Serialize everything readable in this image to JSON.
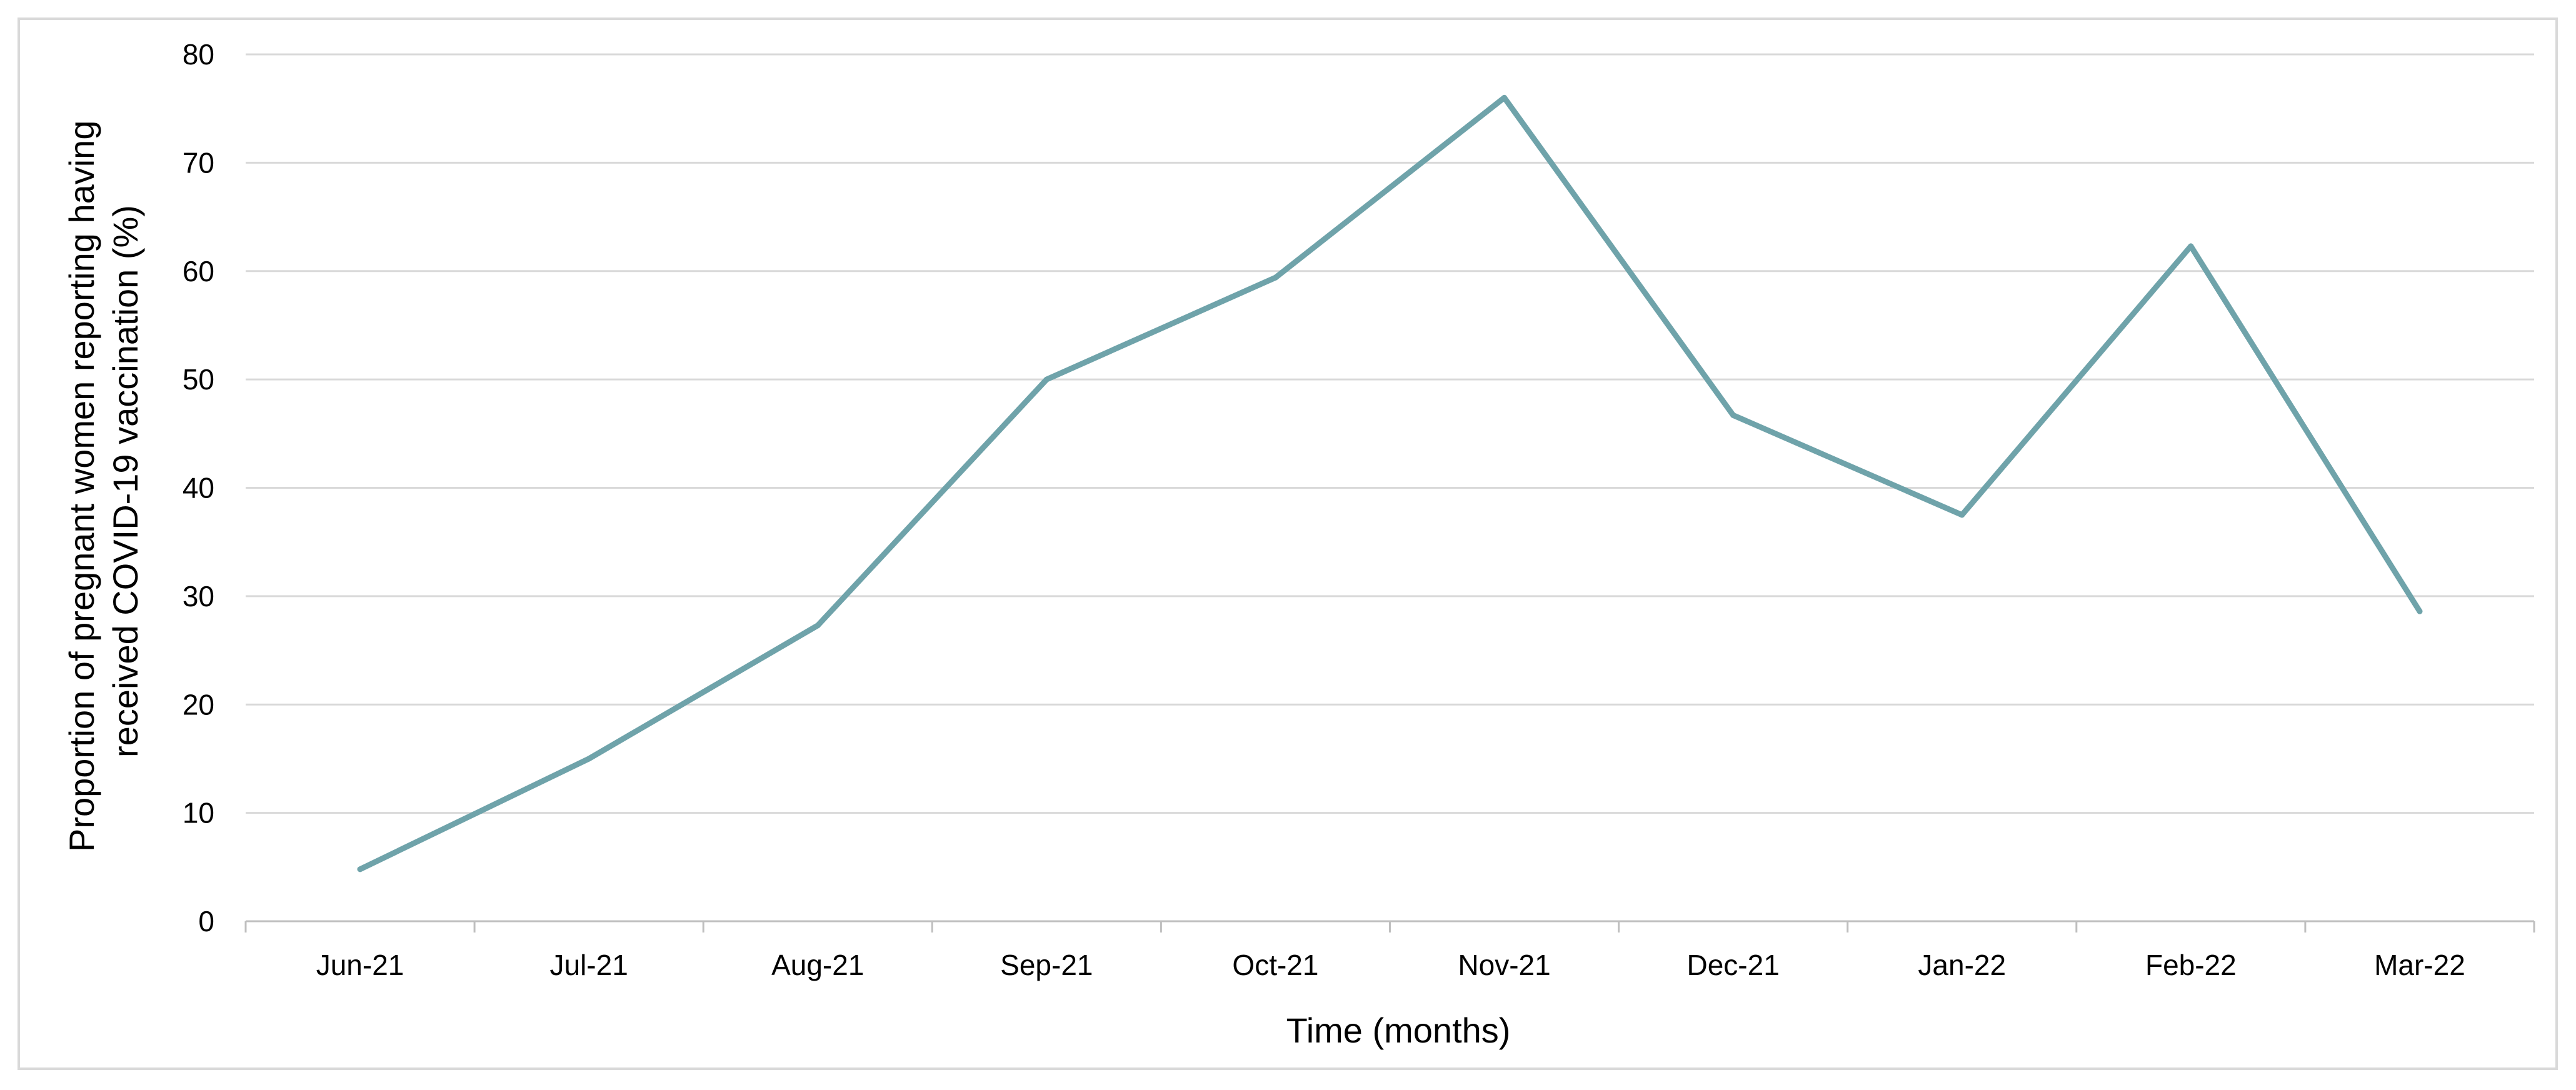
{
  "chart_data": {
    "type": "line",
    "categories": [
      "Jun-21",
      "Jul-21",
      "Aug-21",
      "Sep-21",
      "Oct-21",
      "Nov-21",
      "Dec-21",
      "Jan-22",
      "Feb-22",
      "Mar-22"
    ],
    "series": [
      {
        "values": [
          4.8,
          15.0,
          27.3,
          50.0,
          59.4,
          76.0,
          46.7,
          37.5,
          62.3,
          28.6
        ],
        "color": "#6fa3aa"
      }
    ],
    "title": "",
    "xlabel": "Time (months)",
    "ylabel_line1": "Proportion of pregnant women reporting having",
    "ylabel_line2": "received COVID-19 vaccination (%)",
    "ylim": [
      0,
      80
    ],
    "yticks": [
      "0",
      "10",
      "20",
      "30",
      "40",
      "50",
      "60",
      "70",
      "80"
    ],
    "grid": true,
    "legend": "none",
    "colors": {
      "grid": "#d9d9d9",
      "axis": "#bfbfbf",
      "border": "#d9d9d9"
    }
  }
}
